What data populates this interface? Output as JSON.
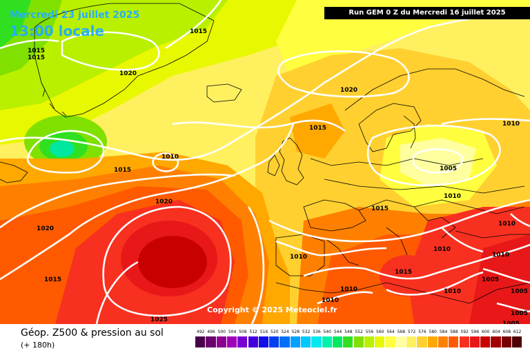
{
  "header": {
    "date": "Mercredi 23 juillet 2025",
    "time": "13:00 locale",
    "run": "Run GEM 0 Z du Mercredi 16 juillet 2025"
  },
  "footer": {
    "title": "Géop. Z500 & pression au sol",
    "forecast_hours": "(+ 180h)"
  },
  "copyright": "Copyright © 2025 Meteociel.fr",
  "colors": {
    "label_blue": "#26aef8",
    "isobar": "#ffffff",
    "coast": "#000000"
  },
  "legend": {
    "values": [
      "492",
      "496",
      "500",
      "504",
      "508",
      "512",
      "516",
      "520",
      "524",
      "528",
      "532",
      "536",
      "540",
      "544",
      "548",
      "552",
      "556",
      "560",
      "564",
      "568",
      "572",
      "576",
      "580",
      "584",
      "588",
      "592",
      "596",
      "600",
      "604",
      "608",
      "612"
    ],
    "colors": [
      "#48004a",
      "#6a006c",
      "#8c0090",
      "#a000b8",
      "#7800d0",
      "#4400dc",
      "#1010e8",
      "#0040f0",
      "#0070f8",
      "#00a0ff",
      "#00c8ff",
      "#00e8f0",
      "#00f0b0",
      "#00e860",
      "#30e020",
      "#80e000",
      "#b8f000",
      "#e8f800",
      "#ffff40",
      "#ffffa0",
      "#fff060",
      "#ffd030",
      "#ffa800",
      "#ff8000",
      "#ff5a00",
      "#f83020",
      "#e81818",
      "#c80000",
      "#a00000",
      "#780000",
      "#500000"
    ]
  },
  "isobar_labels": [
    {
      "text": "1015"
    },
    {
      "text": "1015"
    },
    {
      "text": "1015"
    },
    {
      "text": "1020"
    },
    {
      "text": "1020"
    },
    {
      "text": "1015"
    },
    {
      "text": "1010"
    },
    {
      "text": "1010"
    },
    {
      "text": "1015"
    },
    {
      "text": "1005"
    },
    {
      "text": "1010"
    },
    {
      "text": "1020"
    },
    {
      "text": "1015"
    },
    {
      "text": "1020"
    },
    {
      "text": "1010"
    },
    {
      "text": "1010"
    },
    {
      "text": "1015"
    },
    {
      "text": "1010"
    },
    {
      "text": "1005"
    },
    {
      "text": "1010"
    },
    {
      "text": "1010"
    },
    {
      "text": "1010"
    },
    {
      "text": "1015"
    },
    {
      "text": "1025"
    },
    {
      "text": "1005"
    },
    {
      "text": "1005"
    },
    {
      "text": "1005"
    }
  ]
}
